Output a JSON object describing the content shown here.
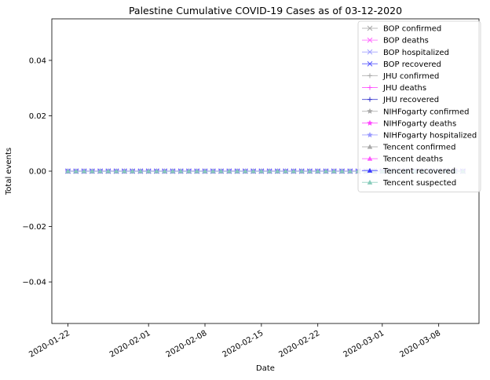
{
  "chart_data": {
    "type": "line",
    "title": "Palestine Cumulative COVID-19 Cases as of 03-12-2020",
    "xlabel": "Date",
    "ylabel": "Total events",
    "ylim": [
      -0.055,
      0.055
    ],
    "xlim": [
      "2020-01-20",
      "2020-03-13"
    ],
    "x_ticks": [
      "2020-01-22",
      "2020-02-01",
      "2020-02-08",
      "2020-02-15",
      "2020-02-22",
      "2020-03-01",
      "2020-03-08"
    ],
    "y_ticks": [
      "−0.04",
      "−0.02",
      "0.00",
      "0.02",
      "0.04"
    ],
    "y_tick_values": [
      -0.04,
      -0.02,
      0.0,
      0.02,
      0.04
    ],
    "x_start": "2020-01-22",
    "x_end": "2020-03-11",
    "grid": false,
    "legend_position": "top-right",
    "series": [
      {
        "name": "BOP confirmed",
        "color": "#a8a8a8",
        "marker": "x",
        "value": 0
      },
      {
        "name": "BOP deaths",
        "color": "#ff66ff",
        "marker": "x",
        "value": 0
      },
      {
        "name": "BOP hospitalized",
        "color": "#9999ff",
        "marker": "x",
        "value": 0
      },
      {
        "name": "BOP recovered",
        "color": "#4a4aff",
        "marker": "x",
        "value": 0
      },
      {
        "name": "JHU confirmed",
        "color": "#a8a8a8",
        "marker": "+",
        "value": 0
      },
      {
        "name": "JHU deaths",
        "color": "#ff44ff",
        "marker": "+",
        "value": 0
      },
      {
        "name": "JHU recovered",
        "color": "#3333cc",
        "marker": "+",
        "value": 0
      },
      {
        "name": "NIHFogarty confirmed",
        "color": "#a8a8a8",
        "marker": "*",
        "value": 0
      },
      {
        "name": "NIHFogarty deaths",
        "color": "#ff44ff",
        "marker": "*",
        "value": 0
      },
      {
        "name": "NIHFogarty hospitalized",
        "color": "#9999ff",
        "marker": "*",
        "value": 0
      },
      {
        "name": "Tencent confirmed",
        "color": "#a8a8a8",
        "marker": "^",
        "value": 0
      },
      {
        "name": "Tencent deaths",
        "color": "#ff55ff",
        "marker": "^",
        "value": 0
      },
      {
        "name": "Tencent recovered",
        "color": "#3a3aff",
        "marker": "^",
        "value": 0
      },
      {
        "name": "Tencent suspected",
        "color": "#88ccbb",
        "marker": "^",
        "value": 0
      }
    ]
  }
}
